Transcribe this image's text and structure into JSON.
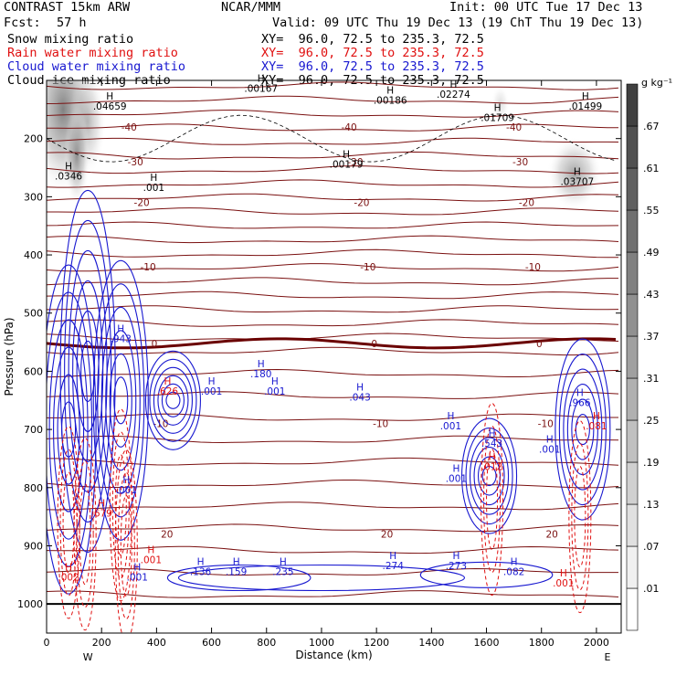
{
  "header": {
    "model": "CONTRAST 15km ARW",
    "org": "NCAR/MMM",
    "init": "Init: 00 UTC Tue 17 Dec 13",
    "fcst_label": "Fcst:",
    "fcst_value": "57 h",
    "valid": "Valid: 09 UTC Thu 19 Dec 13 (19 ChT Thu 19 Dec 13)"
  },
  "fields": [
    {
      "name": "Snow mixing ratio",
      "xy": "XY=  96.0, 72.5 to 235.3, 72.5",
      "color": "#000000"
    },
    {
      "name": "Rain water mixing ratio",
      "xy": "XY=  96.0, 72.5 to 235.3, 72.5",
      "color": "#e01010"
    },
    {
      "name": "Cloud water mixing ratio",
      "xy": "XY=  96.0, 72.5 to 235.3, 72.5",
      "color": "#1818d0"
    },
    {
      "name": "Cloud ice mixing ratio",
      "xy": "XY=  96.0, 72.5 to 235.3, 72.5",
      "color": "#000000"
    }
  ],
  "chart_data": {
    "type": "heatmap",
    "xlabel": "Distance (km)",
    "ylabel": "Pressure (hPa)",
    "xlim": [
      0,
      2090
    ],
    "ylim": [
      1050,
      100
    ],
    "x_ticks": [
      0,
      200,
      400,
      600,
      800,
      1000,
      1200,
      1400,
      1600,
      1800,
      2000
    ],
    "y_ticks": [
      1000,
      900,
      800,
      700,
      600,
      500,
      400,
      300,
      200
    ],
    "x_end_labels": {
      "left": "W",
      "right": "E"
    },
    "colorbar": {
      "unit": "g kg⁻¹",
      "levels": [
        ".01",
        ".07",
        ".13",
        ".19",
        ".25",
        ".31",
        ".37",
        ".43",
        ".49",
        ".55",
        ".61",
        ".67"
      ],
      "colors": [
        "#ffffff",
        "#f0f0f0",
        "#e0e0e0",
        "#d0d0d0",
        "#c0c0c0",
        "#b0b0b0",
        "#a0a0a0",
        "#909090",
        "#808080",
        "#707070",
        "#606060",
        "#505050",
        "#404040"
      ]
    },
    "temperature_isotherms": [
      {
        "label": "-40",
        "p": 180
      },
      {
        "label": "-30",
        "p": 240
      },
      {
        "label": "-20",
        "p": 310
      },
      {
        "label": "-10",
        "p": 420
      },
      {
        "label": "0",
        "p": 552
      },
      {
        "label": "-10",
        "p": 690
      },
      {
        "label": "20",
        "p": 880
      }
    ],
    "maxima_labels": [
      {
        "text": ".04659",
        "x": 230,
        "p": 150,
        "color": "#000000"
      },
      {
        "text": ".00167",
        "x": 780,
        "p": 120,
        "color": "#000000"
      },
      {
        "text": ".00186",
        "x": 1250,
        "p": 140,
        "color": "#000000"
      },
      {
        "text": ".02274",
        "x": 1480,
        "p": 130,
        "color": "#000000"
      },
      {
        "text": ".01709",
        "x": 1640,
        "p": 170,
        "color": "#000000"
      },
      {
        "text": ".01499",
        "x": 1960,
        "p": 150,
        "color": "#000000"
      },
      {
        "text": ".0346",
        "x": 80,
        "p": 270,
        "color": "#000000"
      },
      {
        "text": ".00179",
        "x": 1090,
        "p": 250,
        "color": "#000000"
      },
      {
        "text": ".03707",
        "x": 1930,
        "p": 280,
        "color": "#000000"
      },
      {
        "text": ".001",
        "x": 390,
        "p": 290,
        "color": "#000000"
      },
      {
        "text": ".943",
        "x": 270,
        "p": 550,
        "color": "#1818d0"
      },
      {
        "text": ".180",
        "x": 780,
        "p": 610,
        "color": "#1818d0"
      },
      {
        "text": ".001",
        "x": 600,
        "p": 640,
        "color": "#1818d0"
      },
      {
        "text": ".001",
        "x": 830,
        "p": 640,
        "color": "#1818d0"
      },
      {
        "text": ".043",
        "x": 1140,
        "p": 650,
        "color": "#1818d0"
      },
      {
        "text": ".001",
        "x": 1470,
        "p": 700,
        "color": "#1818d0"
      },
      {
        "text": ".543",
        "x": 1620,
        "p": 730,
        "color": "#1818d0"
      },
      {
        "text": ".966",
        "x": 1940,
        "p": 660,
        "color": "#1818d0"
      },
      {
        "text": ".001",
        "x": 1830,
        "p": 740,
        "color": "#1818d0"
      },
      {
        "text": ".001",
        "x": 1490,
        "p": 790,
        "color": "#1818d0"
      },
      {
        "text": ".001",
        "x": 290,
        "p": 810,
        "color": "#1818d0"
      },
      {
        "text": ".136",
        "x": 560,
        "p": 950,
        "color": "#1818d0"
      },
      {
        "text": ".159",
        "x": 690,
        "p": 950,
        "color": "#1818d0"
      },
      {
        "text": ".235",
        "x": 860,
        "p": 950,
        "color": "#1818d0"
      },
      {
        "text": ".274",
        "x": 1260,
        "p": 940,
        "color": "#1818d0"
      },
      {
        "text": ".273",
        "x": 1490,
        "p": 940,
        "color": "#1818d0"
      },
      {
        "text": ".082",
        "x": 1700,
        "p": 950,
        "color": "#1818d0"
      },
      {
        "text": ".001",
        "x": 330,
        "p": 960,
        "color": "#1818d0"
      },
      {
        "text": ".001",
        "x": 380,
        "p": 930,
        "color": "#e01010"
      },
      {
        "text": ".626",
        "x": 440,
        "p": 640,
        "color": "#e01010"
      },
      {
        "text": ".081",
        "x": 2000,
        "p": 700,
        "color": "#e01010"
      },
      {
        "text": ".012",
        "x": 1620,
        "p": 770,
        "color": "#e01010"
      },
      {
        "text": ".679",
        "x": 200,
        "p": 850,
        "color": "#e01010"
      },
      {
        "text": ".002",
        "x": 80,
        "p": 960,
        "color": "#e01010"
      },
      {
        "text": ".001",
        "x": 1880,
        "p": 970,
        "color": "#e01010"
      }
    ]
  }
}
